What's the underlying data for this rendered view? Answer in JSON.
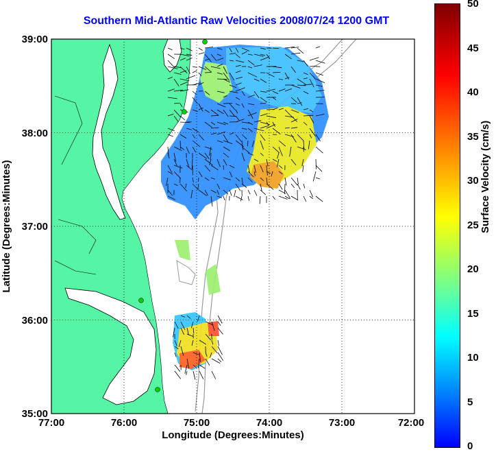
{
  "title": "Southern Mid-Atlantic Raw Velocities 2008/07/24 1200 GMT",
  "xlabel": "Longitude (Degrees:Minutes)",
  "ylabel": "Latitude (Degrees:Minutes)",
  "x_ticks": [
    "77:00",
    "76:00",
    "75:00",
    "74:00",
    "73:00",
    "72:00"
  ],
  "y_ticks": [
    "39:00",
    "38:00",
    "37:00",
    "36:00",
    "35:00"
  ],
  "colorbar": {
    "label": "Surface Velocity (cm/s)",
    "ticks": [
      "0",
      "5",
      "10",
      "15",
      "20",
      "25",
      "30",
      "35",
      "40",
      "45",
      "50"
    ],
    "range": [
      0,
      50
    ]
  },
  "colors": {
    "land": "#55f5a5",
    "title": "#0000ff",
    "coast_line": "#000000",
    "isobath": "#999999"
  },
  "map": {
    "lon_range": [
      -77,
      -72
    ],
    "lat_range": [
      35,
      39
    ],
    "grid": true
  }
}
